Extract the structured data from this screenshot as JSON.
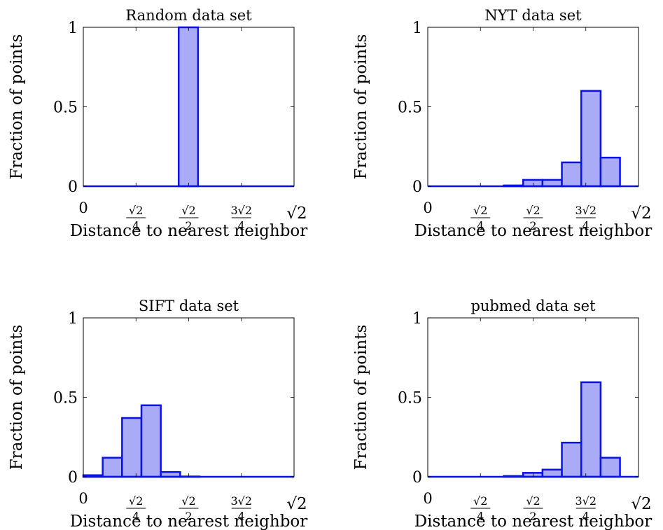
{
  "chart_data": [
    {
      "type": "bar",
      "title": "Random data set",
      "xlabel": "Distance to nearest neighbor",
      "ylabel": "Fraction of points",
      "xlim": [
        0,
        1.41421
      ],
      "ylim": [
        0,
        1
      ],
      "yticks": [
        "0",
        "0.5",
        "1"
      ],
      "xticks": [
        {
          "value": 0,
          "num": "0",
          "den": ""
        },
        {
          "value": 0.35355,
          "num": "√2",
          "den": "4"
        },
        {
          "value": 0.70711,
          "num": "√2",
          "den": "2"
        },
        {
          "value": 1.06066,
          "num": "3√2",
          "den": "4"
        },
        {
          "value": 1.41421,
          "num": "√2",
          "den": ""
        }
      ],
      "bin_width": 0.13,
      "bins": [
        {
          "x": 0.64,
          "y": 1.0
        }
      ],
      "baseline": true,
      "grid": false,
      "colors": {
        "fill": "#a9abf7",
        "stroke": "#0a12e8"
      }
    },
    {
      "type": "bar",
      "title": "NYT data set",
      "xlabel": "Distance to nearest neighbor",
      "ylabel": "Fraction of points",
      "xlim": [
        0,
        1.41421
      ],
      "ylim": [
        0,
        1
      ],
      "yticks": [
        "0",
        "0.5",
        "1"
      ],
      "xticks": [
        {
          "value": 0,
          "num": "0",
          "den": ""
        },
        {
          "value": 0.35355,
          "num": "√2",
          "den": "4"
        },
        {
          "value": 0.70711,
          "num": "√2",
          "den": "2"
        },
        {
          "value": 1.06066,
          "num": "3√2",
          "den": "4"
        },
        {
          "value": 1.41421,
          "num": "√2",
          "den": ""
        }
      ],
      "bin_width": 0.13,
      "bins": [
        {
          "x": 0.51,
          "y": 0.005
        },
        {
          "x": 0.64,
          "y": 0.04
        },
        {
          "x": 0.77,
          "y": 0.04
        },
        {
          "x": 0.9,
          "y": 0.15
        },
        {
          "x": 1.03,
          "y": 0.6
        },
        {
          "x": 1.16,
          "y": 0.18
        }
      ],
      "baseline": true,
      "grid": false,
      "colors": {
        "fill": "#a9abf7",
        "stroke": "#0a12e8"
      }
    },
    {
      "type": "bar",
      "title": "SIFT data set",
      "xlabel": "Distance to nearest neighbor",
      "ylabel": "Fraction of points",
      "xlim": [
        0,
        1.41421
      ],
      "ylim": [
        0,
        1
      ],
      "yticks": [
        "0",
        "0.5",
        "1"
      ],
      "xticks": [
        {
          "value": 0,
          "num": "0",
          "den": ""
        },
        {
          "value": 0.35355,
          "num": "√2",
          "den": "4"
        },
        {
          "value": 0.70711,
          "num": "√2",
          "den": "2"
        },
        {
          "value": 1.06066,
          "num": "3√2",
          "den": "4"
        },
        {
          "value": 1.41421,
          "num": "√2",
          "den": ""
        }
      ],
      "bin_width": 0.13,
      "bins": [
        {
          "x": 0.0,
          "y": 0.01
        },
        {
          "x": 0.13,
          "y": 0.12
        },
        {
          "x": 0.26,
          "y": 0.37
        },
        {
          "x": 0.39,
          "y": 0.45
        },
        {
          "x": 0.52,
          "y": 0.03
        },
        {
          "x": 0.65,
          "y": 0.002
        }
      ],
      "baseline": true,
      "grid": false,
      "colors": {
        "fill": "#a9abf7",
        "stroke": "#0a12e8"
      }
    },
    {
      "type": "bar",
      "title": "pubmed data set",
      "xlabel": "Distance to nearest neighbor",
      "ylabel": "Fraction of points",
      "xlim": [
        0,
        1.41421
      ],
      "ylim": [
        0,
        1
      ],
      "yticks": [
        "0",
        "0.5",
        "1"
      ],
      "xticks": [
        {
          "value": 0,
          "num": "0",
          "den": ""
        },
        {
          "value": 0.35355,
          "num": "√2",
          "den": "4"
        },
        {
          "value": 0.70711,
          "num": "√2",
          "den": "2"
        },
        {
          "value": 1.06066,
          "num": "3√2",
          "den": "4"
        },
        {
          "value": 1.41421,
          "num": "√2",
          "den": ""
        }
      ],
      "bin_width": 0.13,
      "bins": [
        {
          "x": 0.51,
          "y": 0.005
        },
        {
          "x": 0.64,
          "y": 0.025
        },
        {
          "x": 0.77,
          "y": 0.045
        },
        {
          "x": 0.9,
          "y": 0.215
        },
        {
          "x": 1.03,
          "y": 0.595
        },
        {
          "x": 1.16,
          "y": 0.12
        }
      ],
      "baseline": true,
      "grid": false,
      "colors": {
        "fill": "#a9abf7",
        "stroke": "#0a12e8"
      }
    }
  ]
}
